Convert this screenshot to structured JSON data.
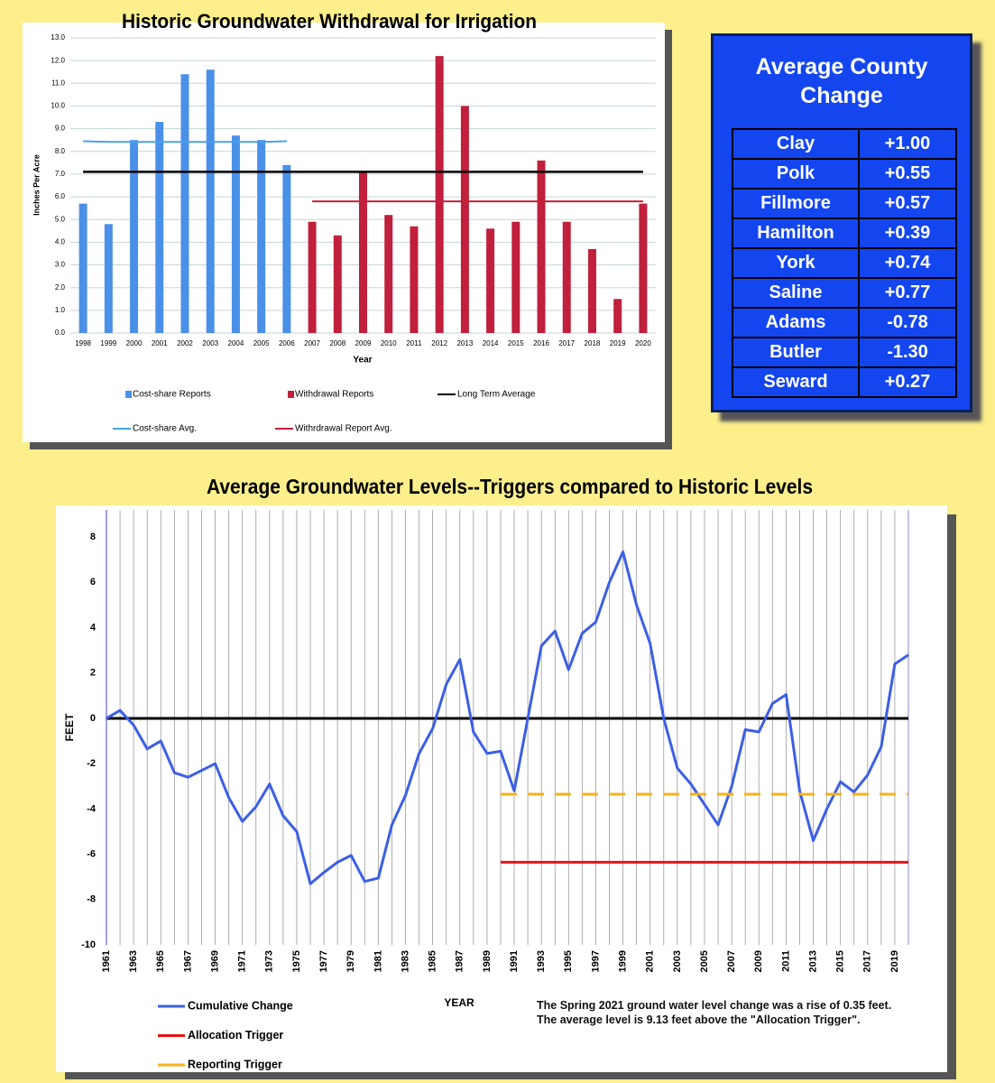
{
  "chart_data": [
    {
      "type": "bar",
      "title": "Historic Groundwater Withdrawal for Irrigation",
      "x_label": "Year",
      "y_label": "Inches Per Acre",
      "categories": [
        "1998",
        "1999",
        "2000",
        "2001",
        "2002",
        "2003",
        "2004",
        "2005",
        "2006",
        "2007",
        "2008",
        "2009",
        "2010",
        "2011",
        "2012",
        "2013",
        "2014",
        "2015",
        "2016",
        "2017",
        "2018",
        "2019",
        "2020"
      ],
      "series": [
        {
          "name": "Cost-share Reports",
          "color": "#4a90e8",
          "values": [
            5.7,
            4.8,
            8.5,
            9.3,
            11.4,
            11.6,
            8.7,
            8.5,
            7.4,
            null,
            null,
            null,
            null,
            null,
            null,
            null,
            null,
            null,
            null,
            null,
            null,
            null,
            null
          ]
        },
        {
          "name": "Withdrawal Reports",
          "color": "#c0203c",
          "values": [
            null,
            null,
            null,
            null,
            null,
            null,
            null,
            null,
            null,
            4.9,
            4.3,
            7.1,
            5.2,
            4.7,
            12.2,
            10.0,
            4.6,
            4.9,
            7.6,
            4.9,
            3.7,
            1.5,
            5.7
          ]
        },
        {
          "name": "Long Term Average",
          "color": "#000000",
          "type": "line",
          "values": [
            7.1,
            7.1,
            7.1,
            7.1,
            7.1,
            7.1,
            7.1,
            7.1,
            7.1,
            7.1,
            7.1,
            7.1,
            7.1,
            7.1,
            7.1,
            7.1,
            7.1,
            7.1,
            7.1,
            7.1,
            7.1,
            7.1,
            7.1
          ]
        },
        {
          "name": "Cost-share Avg.",
          "color": "#4aa0e8",
          "type": "line",
          "values": [
            8.45,
            8.42,
            8.42,
            8.42,
            8.42,
            8.42,
            8.42,
            8.42,
            8.45,
            null,
            null,
            null,
            null,
            null,
            null,
            null,
            null,
            null,
            null,
            null,
            null,
            null,
            null
          ]
        },
        {
          "name": "Withrdrawal Report Avg.",
          "color": "#c0203c",
          "type": "line",
          "values": [
            null,
            null,
            null,
            null,
            null,
            null,
            null,
            null,
            null,
            5.8,
            5.8,
            5.8,
            5.8,
            5.8,
            5.8,
            5.8,
            5.8,
            5.8,
            5.8,
            5.8,
            5.8,
            5.8,
            5.8
          ]
        }
      ],
      "ylim": [
        0,
        13
      ],
      "yticks": [
        {
          "value": 0,
          "label": "0.0"
        },
        {
          "value": 1,
          "label": "1.0"
        },
        {
          "value": 2,
          "label": "2.0"
        },
        {
          "value": 3,
          "label": "3.0"
        },
        {
          "value": 4,
          "label": "4.0"
        },
        {
          "value": 5,
          "label": "5.0"
        },
        {
          "value": 6,
          "label": "6.0"
        },
        {
          "value": 7,
          "label": "7.0"
        },
        {
          "value": 8,
          "label": "8.0"
        },
        {
          "value": 9,
          "label": "9.0"
        },
        {
          "value": 10,
          "label": "10.0"
        },
        {
          "value": 11,
          "label": "11.0"
        },
        {
          "value": 12,
          "label": "12.0"
        },
        {
          "value": 13,
          "label": "13.0"
        }
      ],
      "grid": true,
      "legend": "bottom"
    },
    {
      "type": "line",
      "title": "Average Groundwater Levels--Triggers compared to Historic Levels",
      "x_label": "YEAR",
      "y_label": "FEET",
      "x": [
        1961,
        1962,
        1963,
        1964,
        1965,
        1966,
        1967,
        1968,
        1969,
        1970,
        1971,
        1972,
        1973,
        1974,
        1975,
        1976,
        1977,
        1978,
        1979,
        1980,
        1981,
        1982,
        1983,
        1984,
        1985,
        1986,
        1987,
        1988,
        1989,
        1990,
        1991,
        1992,
        1993,
        1994,
        1995,
        1996,
        1997,
        1998,
        1999,
        2000,
        2001,
        2002,
        2003,
        2004,
        2005,
        2006,
        2007,
        2008,
        2009,
        2010,
        2011,
        2012,
        2013,
        2014,
        2015,
        2016,
        2017,
        2018,
        2019,
        2020
      ],
      "series": [
        {
          "name": "Cumulative Change",
          "color": "#3c5fe6",
          "values": [
            0,
            0.35,
            -0.3,
            -1.35,
            -1.0,
            -2.4,
            -2.6,
            -2.3,
            -2.0,
            -3.5,
            -4.55,
            -3.9,
            -2.9,
            -4.3,
            -5.0,
            -7.3,
            -6.8,
            -6.35,
            -6.05,
            -7.2,
            -7.05,
            -4.7,
            -3.4,
            -1.55,
            -0.45,
            1.5,
            2.6,
            -0.6,
            -1.55,
            -1.45,
            -3.2,
            0.0,
            3.2,
            3.85,
            2.15,
            3.75,
            4.25,
            6.0,
            7.35,
            5.0,
            3.3,
            0.0,
            -2.2,
            -2.9,
            -3.8,
            -4.7,
            -3.0,
            -0.5,
            -0.6,
            0.65,
            1.05,
            -3.2,
            -5.4,
            -4.0,
            -2.8,
            -3.25,
            -2.5,
            -1.25,
            2.4,
            2.8
          ]
        },
        {
          "name": "Allocation Trigger",
          "color": "#e81414",
          "values": [
            null,
            null,
            null,
            null,
            null,
            null,
            null,
            null,
            null,
            null,
            null,
            null,
            null,
            null,
            null,
            null,
            null,
            null,
            null,
            null,
            null,
            null,
            null,
            null,
            null,
            null,
            null,
            null,
            null,
            -6.35,
            -6.35,
            -6.35,
            -6.35,
            -6.35,
            -6.35,
            -6.35,
            -6.35,
            -6.35,
            -6.35,
            -6.35,
            -6.35,
            -6.35,
            -6.35,
            -6.35,
            -6.35,
            -6.35,
            -6.35,
            -6.35,
            -6.35,
            -6.35,
            -6.35,
            -6.35,
            -6.35,
            -6.35,
            -6.35,
            -6.35,
            -6.35,
            -6.35,
            -6.35,
            -6.35
          ]
        },
        {
          "name": "Reporting Trigger",
          "color": "#f5b21b",
          "dashed": true,
          "values": [
            null,
            null,
            null,
            null,
            null,
            null,
            null,
            null,
            null,
            null,
            null,
            null,
            null,
            null,
            null,
            null,
            null,
            null,
            null,
            null,
            null,
            null,
            null,
            null,
            null,
            null,
            null,
            null,
            null,
            -3.35,
            -3.35,
            -3.35,
            -3.35,
            -3.35,
            -3.35,
            -3.35,
            -3.35,
            -3.35,
            -3.35,
            -3.35,
            -3.35,
            -3.35,
            -3.35,
            -3.35,
            -3.35,
            -3.35,
            -3.35,
            -3.35,
            -3.35,
            -3.35,
            -3.35,
            -3.35,
            -3.35,
            -3.35,
            -3.35,
            -3.35,
            -3.35,
            -3.35,
            -3.35,
            -3.35
          ]
        }
      ],
      "xlim": [
        1961,
        2020
      ],
      "xticks": [
        1961,
        1963,
        1965,
        1967,
        1969,
        1971,
        1973,
        1975,
        1977,
        1979,
        1981,
        1983,
        1985,
        1987,
        1989,
        1991,
        1993,
        1995,
        1997,
        1999,
        2001,
        2003,
        2005,
        2007,
        2009,
        2011,
        2013,
        2015,
        2017,
        2019
      ],
      "ylim": [
        -10,
        9.2
      ],
      "yticks": [
        -10,
        -8,
        -6,
        -4,
        -2,
        0,
        2,
        4,
        6,
        8
      ],
      "grid": "x",
      "zero_line": true,
      "legend": "bottom left",
      "annotation": "The Spring 2021 ground water level change was a rise of 0.35 feet. The average level is 9.13 feet above the \"Allocation Trigger\"."
    }
  ],
  "table": {
    "title": "Average County Change",
    "rows": [
      [
        "Clay",
        "+1.00"
      ],
      [
        "Polk",
        "+0.55"
      ],
      [
        "Fillmore",
        "+0.57"
      ],
      [
        "Hamilton",
        "+0.39"
      ],
      [
        "York",
        "+0.74"
      ],
      [
        "Saline",
        "+0.77"
      ],
      [
        "Adams",
        "-0.78"
      ],
      [
        "Butler",
        "-1.30"
      ],
      [
        "Seward",
        "+0.27"
      ]
    ]
  }
}
